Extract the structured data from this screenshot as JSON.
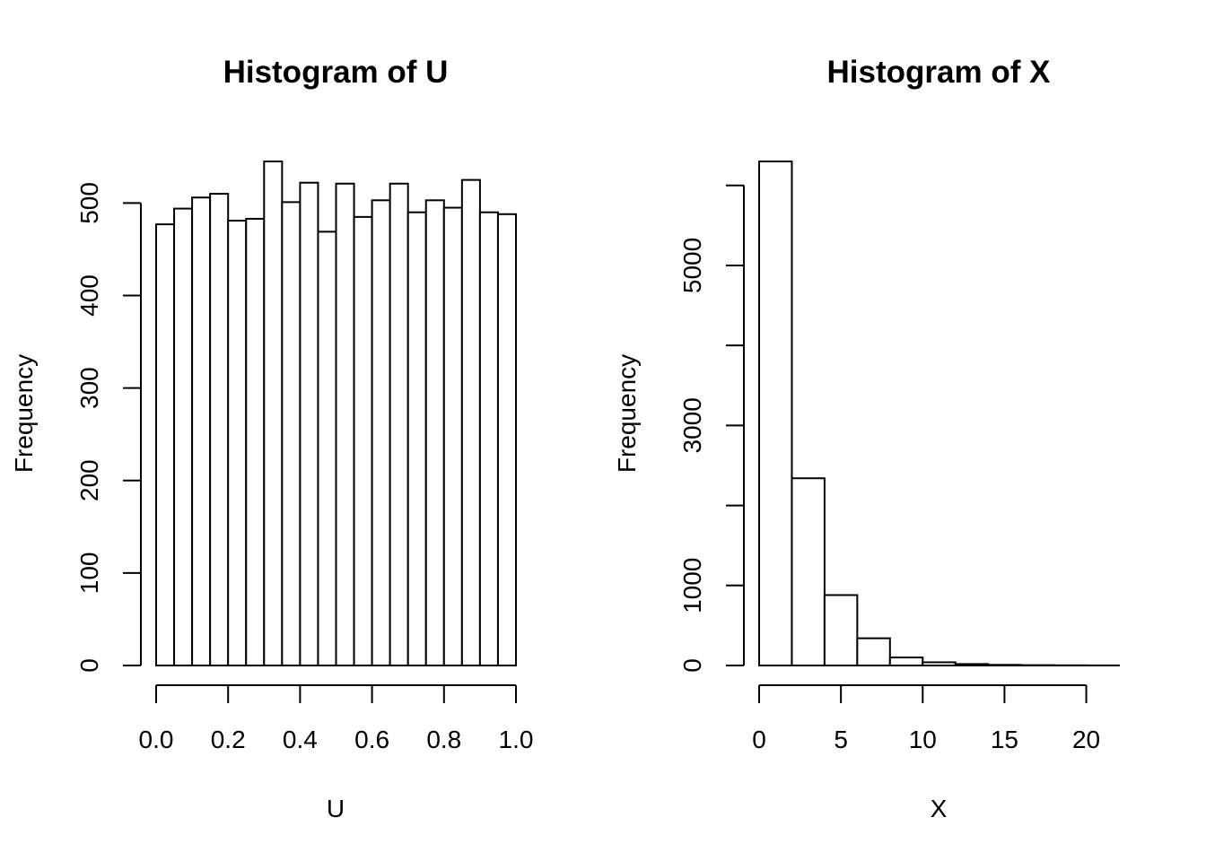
{
  "chart_data": [
    {
      "type": "bar",
      "title": "Histogram of U",
      "xlabel": "U",
      "ylabel": "Frequency",
      "bin_edges": [
        0.0,
        0.05,
        0.1,
        0.15,
        0.2,
        0.25,
        0.3,
        0.35,
        0.4,
        0.45,
        0.5,
        0.55,
        0.6,
        0.65,
        0.7,
        0.75,
        0.8,
        0.85,
        0.9,
        0.95,
        1.0
      ],
      "values": [
        477,
        494,
        506,
        510,
        481,
        483,
        545,
        501,
        522,
        469,
        521,
        485,
        503,
        521,
        490,
        503,
        495,
        525,
        490,
        488
      ],
      "xlim": [
        0,
        1
      ],
      "ylim": [
        0,
        545
      ],
      "xticks": [
        0.0,
        0.2,
        0.4,
        0.6,
        0.8,
        1.0
      ],
      "xtick_labels": [
        "0.0",
        "0.2",
        "0.4",
        "0.6",
        "0.8",
        "1.0"
      ],
      "yticks": [
        0,
        100,
        200,
        300,
        400,
        500
      ],
      "ytick_labels": [
        "0",
        "100",
        "200",
        "300",
        "400",
        "500"
      ]
    },
    {
      "type": "bar",
      "title": "Histogram of X",
      "xlabel": "X",
      "ylabel": "Frequency",
      "bin_edges": [
        0,
        2,
        4,
        6,
        8,
        10,
        12,
        14,
        16,
        18,
        20,
        22
      ],
      "values": [
        6300,
        2340,
        880,
        340,
        100,
        40,
        18,
        8,
        4,
        2,
        1
      ],
      "xlim": [
        0,
        22
      ],
      "ylim": [
        0,
        6300
      ],
      "xticks": [
        0,
        5,
        10,
        15,
        20
      ],
      "xtick_labels": [
        "0",
        "5",
        "10",
        "15",
        "20"
      ],
      "yticks": [
        0,
        1000,
        2000,
        3000,
        4000,
        5000,
        6000
      ],
      "ytick_labels": [
        "0",
        "1000",
        "",
        "3000",
        "",
        "5000",
        ""
      ]
    }
  ]
}
